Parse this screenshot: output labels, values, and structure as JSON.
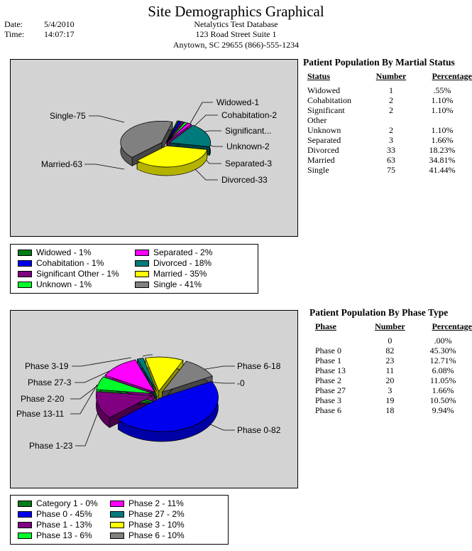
{
  "title": "Site Demographics Graphical",
  "header": {
    "date_label": "Date:",
    "date_value": "5/4/2010",
    "time_label": "Time:",
    "time_value": "14:07:17",
    "org_name": "Netalytics Test Database",
    "address1": "123 Road Street Suite 1",
    "address2": "Anytown, SC  29655    (866)-555-1234"
  },
  "colors": {
    "widowed": "#007d18",
    "cohabitation": "#0000ee",
    "significant": "#800080",
    "unknown": "#00ff2a",
    "separated": "#ff00ff",
    "divorced": "#007a7a",
    "married": "#ffff00",
    "single": "#808080"
  },
  "martial": {
    "table_title": "Patient Population By Martial Status",
    "columns": [
      "Status",
      "Number",
      "Percentage"
    ],
    "rows": [
      {
        "status": "Widowed",
        "number": "1",
        "pct": ".55%"
      },
      {
        "status": "Cohabitation",
        "number": "2",
        "pct": "1.10%"
      },
      {
        "status": "Significant Other",
        "number": "2",
        "pct": "1.10%"
      },
      {
        "status": "Unknown",
        "number": "2",
        "pct": "1.10%"
      },
      {
        "status": "Separated",
        "number": "3",
        "pct": "1.66%"
      },
      {
        "status": "Divorced",
        "number": "33",
        "pct": "18.23%"
      },
      {
        "status": "Married",
        "number": "63",
        "pct": "34.81%"
      },
      {
        "status": "Single",
        "number": "75",
        "pct": "41.44%"
      }
    ],
    "chart_labels": {
      "widowed": "Widowed-1",
      "cohabitation": "Cohabitation-2",
      "significant": "Significant...",
      "unknown": "Unknown-2",
      "separated": "Separated-3",
      "divorced": "Divorced-33",
      "married": "Married-63",
      "single": "Single-75"
    },
    "legend": [
      {
        "label": "Widowed - 1%",
        "color": "#007d18"
      },
      {
        "label": "Cohabitation - 1%",
        "color": "#0000ee"
      },
      {
        "label": "Significant Other - 1%",
        "color": "#800080"
      },
      {
        "label": "Unknown - 1%",
        "color": "#00ff2a"
      },
      {
        "label": "Separated - 2%",
        "color": "#ff00ff"
      },
      {
        "label": "Divorced - 18%",
        "color": "#007a7a"
      },
      {
        "label": "Married - 35%",
        "color": "#ffff00"
      },
      {
        "label": "Single - 41%",
        "color": "#808080"
      }
    ]
  },
  "phase": {
    "table_title": "Patient Population By Phase Type",
    "columns": [
      "Phase",
      "Number",
      "Percentage"
    ],
    "rows": [
      {
        "phase": "",
        "number": "0",
        "pct": ".00%"
      },
      {
        "phase": "Phase 0",
        "number": "82",
        "pct": "45.30%"
      },
      {
        "phase": "Phase 1",
        "number": "23",
        "pct": "12.71%"
      },
      {
        "phase": "Phase 13",
        "number": "11",
        "pct": "6.08%"
      },
      {
        "phase": "Phase 2",
        "number": "20",
        "pct": "11.05%"
      },
      {
        "phase": "Phase 27",
        "number": "3",
        "pct": "1.66%"
      },
      {
        "phase": "Phase 3",
        "number": "19",
        "pct": "10.50%"
      },
      {
        "phase": "Phase 6",
        "number": "18",
        "pct": "9.94%"
      }
    ],
    "chart_labels": {
      "phase3": "Phase 3-19",
      "phase27": "Phase 27-3",
      "phase2": "Phase 2-20",
      "phase13": "Phase 13-11",
      "phase1": "Phase 1-23",
      "phase6": "Phase 6-18",
      "cat1": "-0",
      "phase0": "Phase 0-82"
    },
    "legend": [
      {
        "label": "Category 1 - 0%",
        "color": "#007d18"
      },
      {
        "label": "Phase 0 - 45%",
        "color": "#0000ee"
      },
      {
        "label": "Phase 1 - 13%",
        "color": "#800080"
      },
      {
        "label": "Phase 13 - 6%",
        "color": "#00ff2a"
      },
      {
        "label": "Phase 2 - 11%",
        "color": "#ff00ff"
      },
      {
        "label": "Phase 27 - 2%",
        "color": "#007a7a"
      },
      {
        "label": "Phase 3 - 10%",
        "color": "#ffff00"
      },
      {
        "label": "Phase 6 - 10%",
        "color": "#808080"
      }
    ]
  },
  "chart_data": [
    {
      "type": "pie",
      "categories": [
        "Widowed",
        "Cohabitation",
        "Significant Other",
        "Unknown",
        "Separated",
        "Divorced",
        "Married",
        "Single"
      ],
      "values": [
        1,
        2,
        2,
        2,
        3,
        33,
        63,
        75
      ]
    },
    {
      "type": "pie",
      "categories": [
        "Category 1",
        "Phase 0",
        "Phase 1",
        "Phase 13",
        "Phase 2",
        "Phase 27",
        "Phase 3",
        "Phase 6"
      ],
      "values": [
        0,
        82,
        23,
        11,
        20,
        3,
        19,
        18
      ]
    }
  ]
}
